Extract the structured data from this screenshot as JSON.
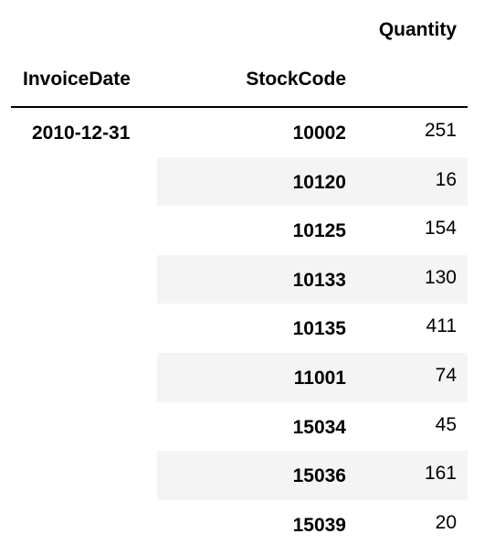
{
  "table": {
    "columns_header": "Quantity",
    "index_names": [
      "InvoiceDate",
      "StockCode"
    ],
    "rows": [
      {
        "invoice_date": "2010-12-31",
        "stock_code": "10002",
        "quantity": "251"
      },
      {
        "invoice_date": "",
        "stock_code": "10120",
        "quantity": "16"
      },
      {
        "invoice_date": "",
        "stock_code": "10125",
        "quantity": "154"
      },
      {
        "invoice_date": "",
        "stock_code": "10133",
        "quantity": "130"
      },
      {
        "invoice_date": "",
        "stock_code": "10135",
        "quantity": "411"
      },
      {
        "invoice_date": "",
        "stock_code": "11001",
        "quantity": "74"
      },
      {
        "invoice_date": "",
        "stock_code": "15034",
        "quantity": "45"
      },
      {
        "invoice_date": "",
        "stock_code": "15036",
        "quantity": "161"
      },
      {
        "invoice_date": "",
        "stock_code": "15039",
        "quantity": "20"
      }
    ]
  }
}
